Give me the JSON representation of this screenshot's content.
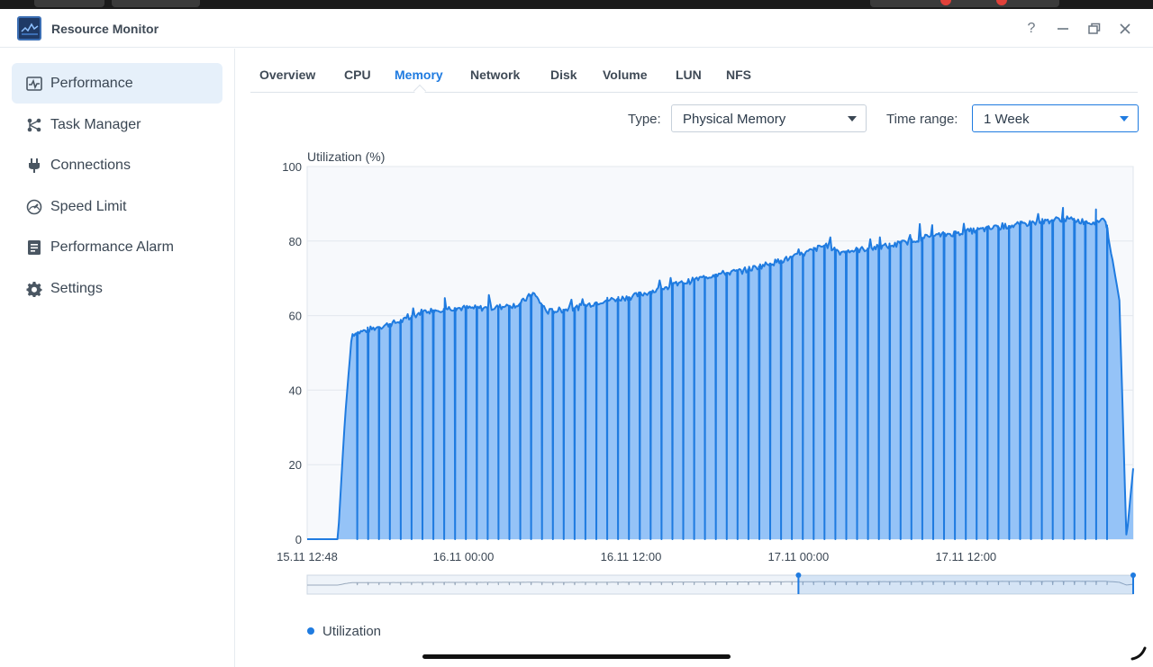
{
  "window": {
    "title": "Resource Monitor",
    "controls": [
      {
        "name": "help-icon",
        "glyph": "?"
      },
      {
        "name": "minimize-icon",
        "glyph": "—"
      },
      {
        "name": "restore-icon",
        "glyph": "❐"
      },
      {
        "name": "close-icon",
        "glyph": "✕"
      }
    ]
  },
  "sidebar": {
    "items": [
      {
        "label": "Performance",
        "icon": "performance-icon",
        "active": true
      },
      {
        "label": "Task Manager",
        "icon": "task-manager-icon",
        "active": false
      },
      {
        "label": "Connections",
        "icon": "plug-icon",
        "active": false
      },
      {
        "label": "Speed Limit",
        "icon": "speedometer-icon",
        "active": false
      },
      {
        "label": "Performance Alarm",
        "icon": "alarm-icon",
        "active": false
      },
      {
        "label": "Settings",
        "icon": "gear-icon",
        "active": false
      }
    ]
  },
  "tabs": [
    {
      "label": "Overview",
      "active": false
    },
    {
      "label": "CPU",
      "active": false
    },
    {
      "label": "Memory",
      "active": true
    },
    {
      "label": "Network",
      "active": false
    },
    {
      "label": "Disk",
      "active": false
    },
    {
      "label": "Volume",
      "active": false
    },
    {
      "label": "LUN",
      "active": false
    },
    {
      "label": "NFS",
      "active": false
    }
  ],
  "filters": {
    "type_label": "Type:",
    "type_value": "Physical Memory",
    "time_label": "Time range:",
    "time_value": "1 Week"
  },
  "colors": {
    "accent": "#1f7be0",
    "area_fill": "#95c3f7",
    "line": "#1f7be0"
  },
  "chart_data": {
    "type": "area",
    "ylabel": "Utilization (%)",
    "ylim": [
      0,
      100
    ],
    "yticks": [
      0,
      20,
      40,
      60,
      80,
      100
    ],
    "xlim": [
      "2023-11-15 12:48",
      "2023-11-17 23:59"
    ],
    "xtick_labels": [
      "15.11 12:48",
      "16.11 00:00",
      "16.11 12:00",
      "17.11 00:00",
      "17.11 12:00"
    ],
    "grid": true,
    "legend": {
      "position": "bottom-left",
      "entries": [
        "Utilization"
      ]
    },
    "series": [
      {
        "name": "Utilization",
        "points": [
          [
            "15.11 12:48",
            0
          ],
          [
            "15.11 15:00",
            0
          ],
          [
            "15.11 15:30",
            32
          ],
          [
            "15.11 16:00",
            55
          ],
          [
            "15.11 18:00",
            57
          ],
          [
            "15.11 20:00",
            59
          ],
          [
            "15.11 21:00",
            61
          ],
          [
            "15.11 23:00",
            62
          ],
          [
            "16.11 02:00",
            62
          ],
          [
            "16.11 04:00",
            63
          ],
          [
            "16.11 05:00",
            66
          ],
          [
            "16.11 06:00",
            61
          ],
          [
            "16.11 08:00",
            62
          ],
          [
            "16.11 10:00",
            64
          ],
          [
            "16.11 12:00",
            65
          ],
          [
            "16.11 14:00",
            67
          ],
          [
            "16.11 16:00",
            69
          ],
          [
            "16.11 18:00",
            71
          ],
          [
            "16.11 20:00",
            72
          ],
          [
            "16.11 22:00",
            74
          ],
          [
            "17.11 00:00",
            76
          ],
          [
            "17.11 02:00",
            79
          ],
          [
            "17.11 03:00",
            77
          ],
          [
            "17.11 05:00",
            78
          ],
          [
            "17.11 07:00",
            79
          ],
          [
            "17.11 09:00",
            81
          ],
          [
            "17.11 11:00",
            82
          ],
          [
            "17.11 13:00",
            83
          ],
          [
            "17.11 15:00",
            84
          ],
          [
            "17.11 17:00",
            85
          ],
          [
            "17.11 19:00",
            86
          ],
          [
            "17.11 21:00",
            85
          ],
          [
            "17.11 22:00",
            86
          ],
          [
            "17.11 23:00",
            64
          ],
          [
            "17.11 23:30",
            0
          ],
          [
            "17.11 23:59",
            19
          ]
        ],
        "dips_to_zero_count": 70
      }
    ],
    "range_selector": {
      "start": "17.11 00:00",
      "end": "17.11 23:59"
    }
  }
}
